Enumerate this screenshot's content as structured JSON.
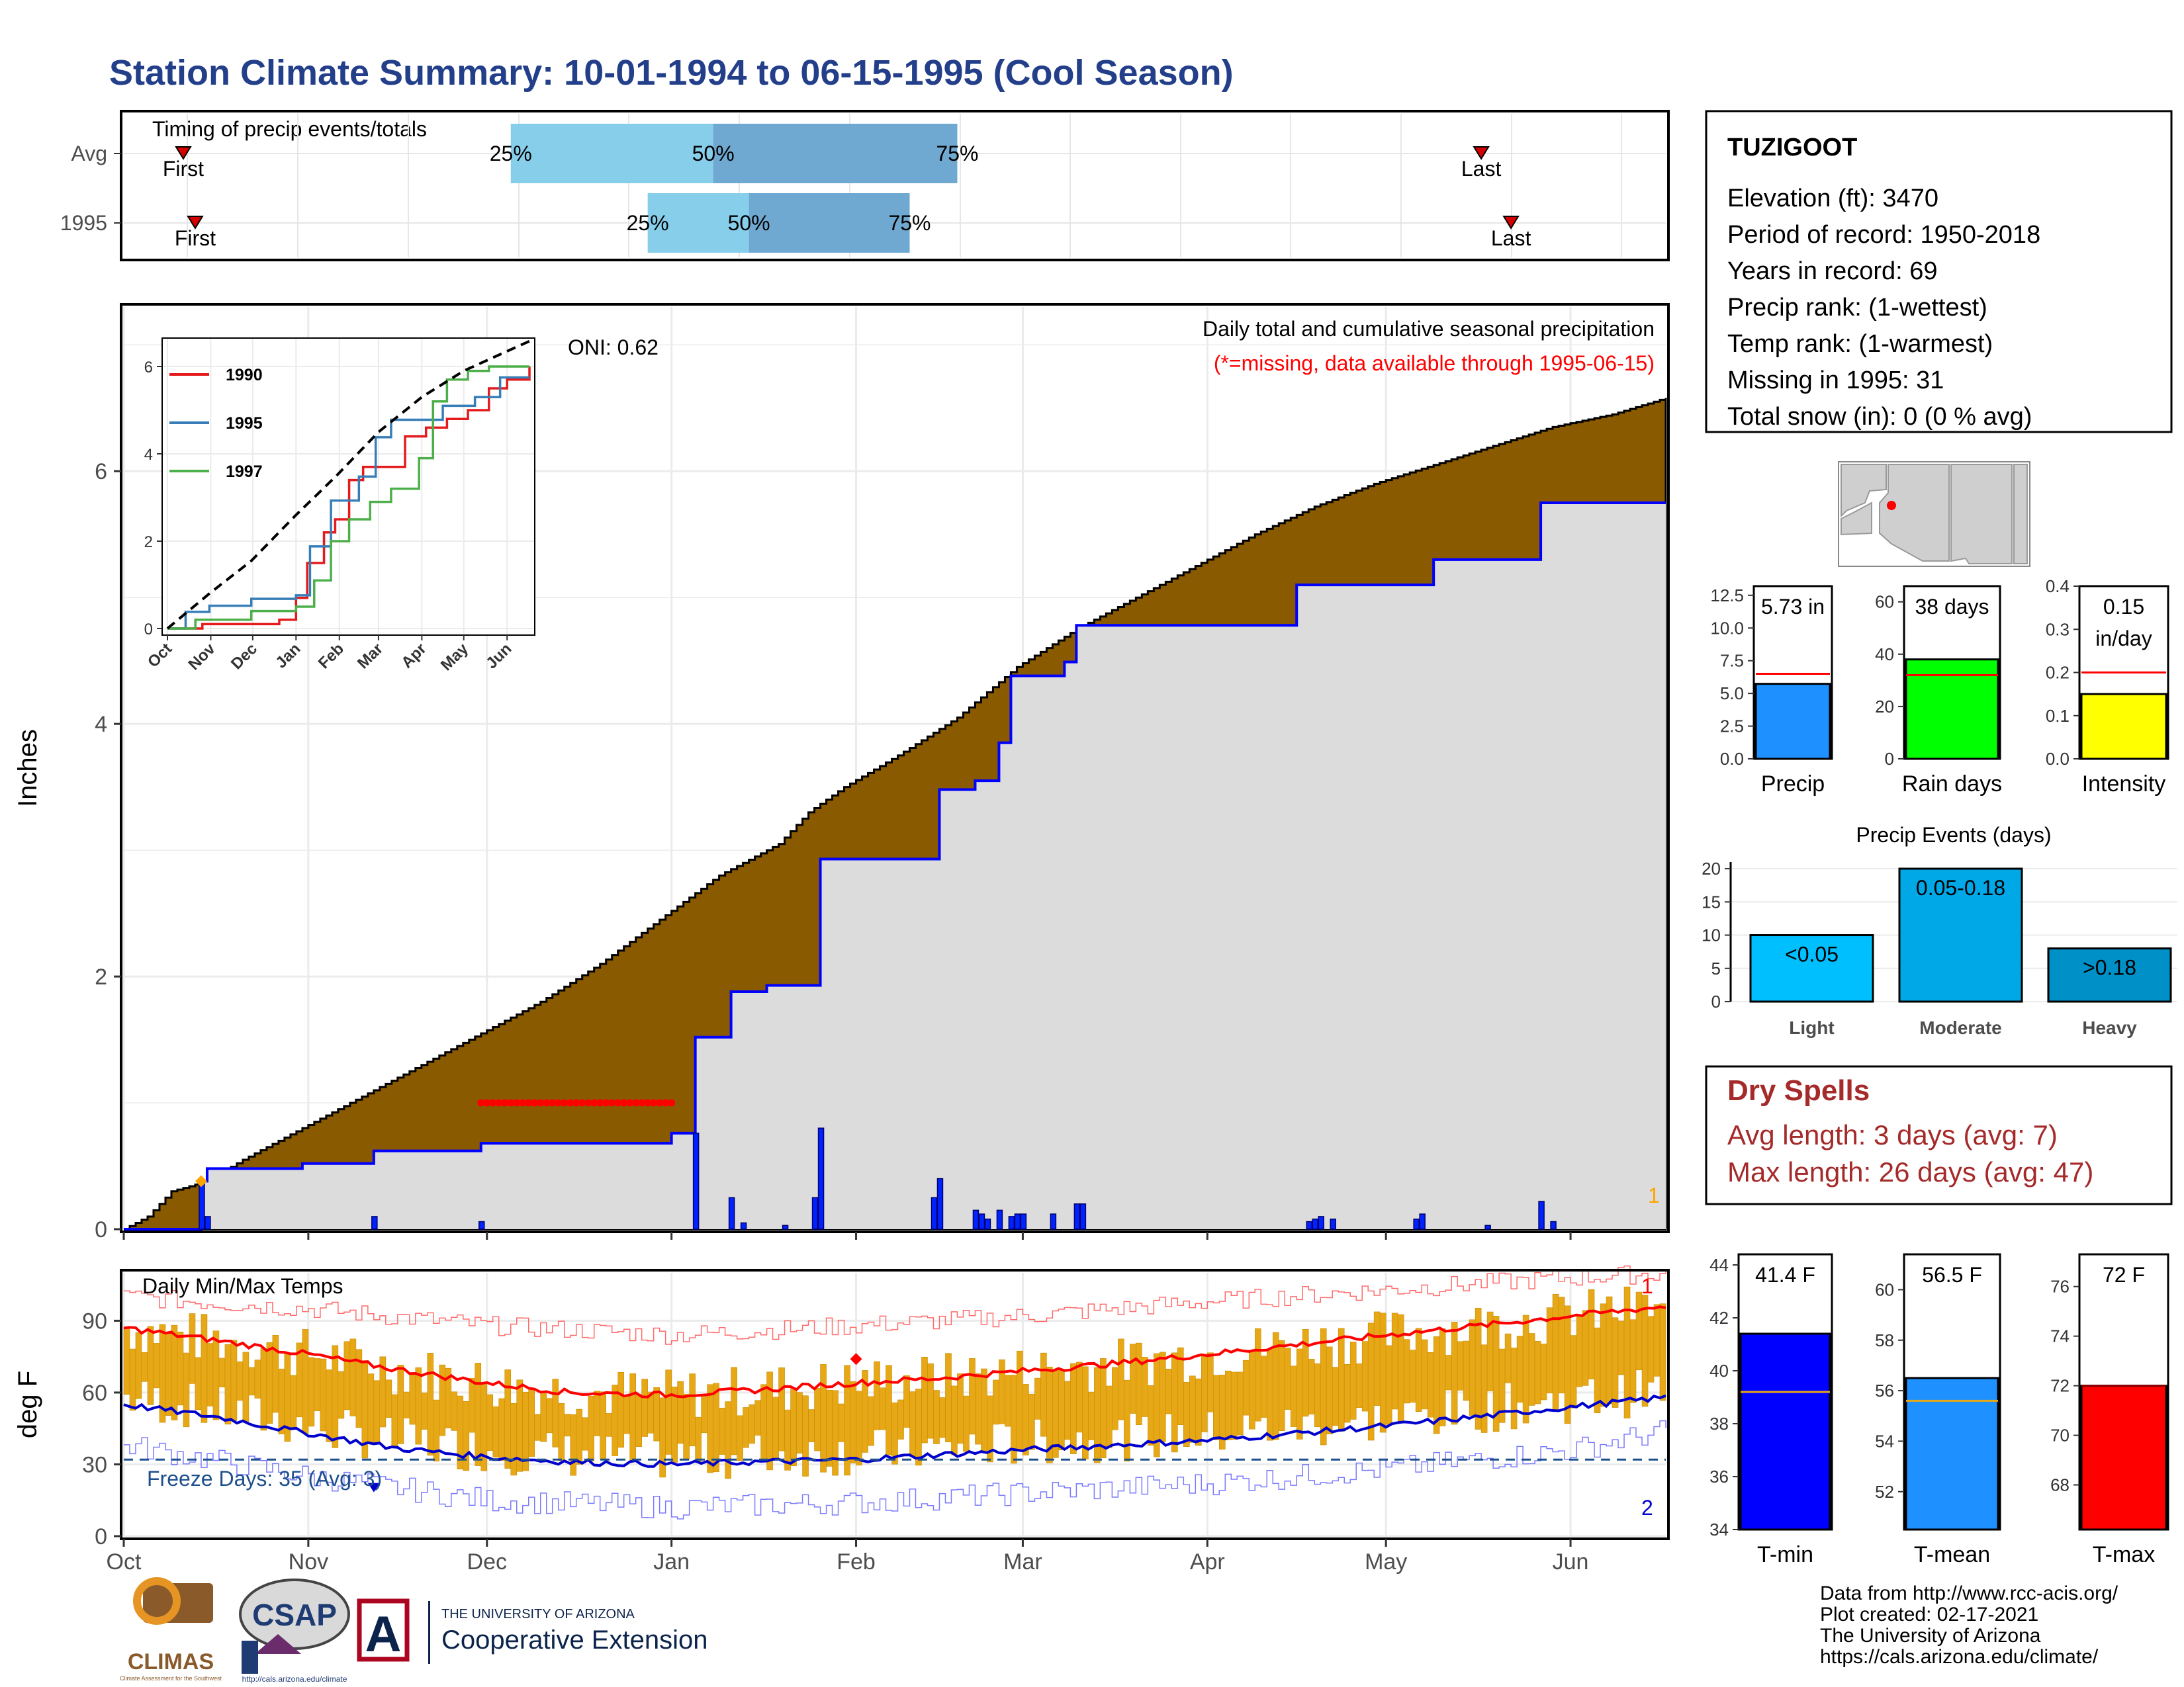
{
  "title": "Station Climate Summary: 10-01-1994 to 06-15-1995 (Cool Season)",
  "colors": {
    "title": "#233f8a",
    "cumulative_fill": "#8a5a00",
    "avg_area": "#dcdcdc",
    "blue_line": "#0000ff",
    "q_light": "#87ceeb",
    "q_dark": "#6fa8d0",
    "temp_bar": "#e6a817",
    "avg_max": "#ff0000",
    "avg_min": "#0000cc",
    "dry_spell": "#a52a2a",
    "freeze": "#1c4f8c"
  },
  "timing_panel": {
    "label": "Timing of precip events/totals",
    "rows": [
      {
        "name": "Avg",
        "first_label": "First",
        "first_day": 10,
        "last_label": "Last",
        "last_day": 228,
        "q25_label": "25%",
        "q25": 65,
        "q50_label": "50%",
        "q50": 99,
        "q75_label": "75%",
        "q75": 140
      },
      {
        "name": "1995",
        "first_label": "First",
        "first_day": 12,
        "last_label": "Last",
        "last_day": 233,
        "q25_label": "25%",
        "q25": 88,
        "q50_label": "50%",
        "q50": 105,
        "q75_label": "75%",
        "q75": 132
      }
    ]
  },
  "info_box": {
    "station": "TUZIGOOT",
    "lines": [
      "Elevation (ft): 3470",
      "Period of record: 1950-2018",
      "Years in record: 69",
      "Precip rank:  (1-wettest)",
      "Temp rank:  (1-warmest)",
      "Missing in 1995: 31",
      "Total snow (in): 0 (0 % avg)"
    ]
  },
  "dry_spells": {
    "title": "Dry Spells",
    "avg_line": "Avg length: 3 days (avg: 7)",
    "max_line": "Max length: 26 days (avg: 47)"
  },
  "footer": {
    "lines": [
      "Data from http://www.rcc-acis.org/",
      "Plot created: 02-17-2021",
      "The University of Arizona",
      "https://cals.arizona.edu/climate/"
    ],
    "logo_climas": "CLIMAS",
    "logo_climas_sub": "Climate Assessment for the Southwest",
    "logo_csap": "CSAP",
    "logo_csap_url": "http://cals.arizona.edu/climate",
    "logo_ua_mark": "A",
    "ua_small": "THE UNIVERSITY OF ARIZONA",
    "ua_big": "Cooperative Extension"
  },
  "chart_data": [
    {
      "id": "cumulative_precip",
      "type": "area",
      "ylabel": "Inches",
      "title": "Daily total and cumulative seasonal precipitation",
      "subtitle": "(*=missing, data available through 1995-06-15)",
      "oni_label": "ONI: 0.62",
      "corner_marker": "1",
      "x_ticks": [
        "Oct",
        "Nov",
        "Dec",
        "Jan",
        "Feb",
        "Mar",
        "Apr",
        "May",
        "Jun"
      ],
      "x_tick_days": [
        0,
        31,
        61,
        92,
        123,
        151,
        182,
        212,
        243
      ],
      "y_ticks": [
        0,
        2,
        4,
        6
      ],
      "ylim": [
        0,
        7.3
      ],
      "avg_cumulative": [
        [
          0,
          0
        ],
        [
          4,
          0.1
        ],
        [
          8,
          0.3
        ],
        [
          14,
          0.38
        ],
        [
          20,
          0.55
        ],
        [
          30,
          0.8
        ],
        [
          40,
          1.05
        ],
        [
          50,
          1.3
        ],
        [
          60,
          1.55
        ],
        [
          70,
          1.8
        ],
        [
          80,
          2.1
        ],
        [
          90,
          2.45
        ],
        [
          100,
          2.8
        ],
        [
          110,
          3.05
        ],
        [
          115,
          3.3
        ],
        [
          121,
          3.5
        ],
        [
          130,
          3.75
        ],
        [
          140,
          4.05
        ],
        [
          150,
          4.45
        ],
        [
          160,
          4.75
        ],
        [
          170,
          5.0
        ],
        [
          180,
          5.25
        ],
        [
          190,
          5.5
        ],
        [
          200,
          5.72
        ],
        [
          210,
          5.9
        ],
        [
          220,
          6.05
        ],
        [
          230,
          6.2
        ],
        [
          240,
          6.35
        ],
        [
          250,
          6.45
        ],
        [
          257,
          6.55
        ],
        [
          259,
          6.58
        ],
        [
          259,
          6.58
        ]
      ],
      "obs_cumulative": [
        [
          0,
          0
        ],
        [
          13,
          0.0
        ],
        [
          13,
          0.38
        ],
        [
          14,
          0.48
        ],
        [
          30,
          0.52
        ],
        [
          42,
          0.52
        ],
        [
          42,
          0.62
        ],
        [
          60,
          0.68
        ],
        [
          92,
          0.68
        ],
        [
          92,
          0.76
        ],
        [
          96,
          1.52
        ],
        [
          102,
          1.88
        ],
        [
          108,
          1.93
        ],
        [
          117,
          1.93
        ],
        [
          117,
          2.93
        ],
        [
          137,
          2.93
        ],
        [
          137,
          3.48
        ],
        [
          143,
          3.55
        ],
        [
          147,
          3.85
        ],
        [
          149,
          4.38
        ],
        [
          158,
          4.49
        ],
        [
          160,
          4.78
        ],
        [
          191,
          4.78
        ],
        [
          197,
          5.1
        ],
        [
          220,
          5.3
        ],
        [
          238,
          5.75
        ],
        [
          259,
          5.75
        ]
      ],
      "missing_range": [
        60,
        92
      ],
      "missing_y": 1.0,
      "daily": [
        [
          13,
          0.38
        ],
        [
          14,
          0.1
        ],
        [
          42,
          0.1
        ],
        [
          60,
          0.06
        ],
        [
          96,
          0.76
        ],
        [
          102,
          0.25
        ],
        [
          104,
          0.05
        ],
        [
          111,
          0.03
        ],
        [
          116,
          0.25
        ],
        [
          117,
          0.8
        ],
        [
          136,
          0.25
        ],
        [
          137,
          0.4
        ],
        [
          143,
          0.15
        ],
        [
          144,
          0.12
        ],
        [
          145,
          0.08
        ],
        [
          147,
          0.15
        ],
        [
          149,
          0.1
        ],
        [
          150,
          0.12
        ],
        [
          151,
          0.12
        ],
        [
          156,
          0.12
        ],
        [
          160,
          0.2
        ],
        [
          161,
          0.2
        ],
        [
          199,
          0.06
        ],
        [
          200,
          0.08
        ],
        [
          201,
          0.1
        ],
        [
          203,
          0.08
        ],
        [
          217,
          0.08
        ],
        [
          218,
          0.12
        ],
        [
          229,
          0.03
        ],
        [
          238,
          0.22
        ],
        [
          240,
          0.06
        ]
      ]
    },
    {
      "id": "inset_cumulative",
      "type": "line",
      "x_ticks": [
        "Oct",
        "Nov",
        "Dec",
        "Jan",
        "Feb",
        "Mar",
        "Apr",
        "May",
        "Jun"
      ],
      "y_ticks": [
        0,
        2,
        4,
        6
      ],
      "ylim": [
        0,
        6.5
      ],
      "series": [
        {
          "name": "1990",
          "color": "#e41a1c",
          "points": [
            [
              0,
              0
            ],
            [
              25,
              0.1
            ],
            [
              80,
              0.2
            ],
            [
              92,
              0.7
            ],
            [
              100,
              1.5
            ],
            [
              112,
              2.2
            ],
            [
              120,
              2.5
            ],
            [
              130,
              3.4
            ],
            [
              140,
              3.7
            ],
            [
              150,
              3.7
            ],
            [
              170,
              4.4
            ],
            [
              185,
              4.6
            ],
            [
              200,
              4.8
            ],
            [
              215,
              5.0
            ],
            [
              230,
              5.5
            ],
            [
              243,
              5.7
            ],
            [
              259,
              6.0
            ]
          ]
        },
        {
          "name": "1995",
          "color": "#377eb8",
          "points": [
            [
              0,
              0
            ],
            [
              13,
              0.38
            ],
            [
              30,
              0.52
            ],
            [
              60,
              0.68
            ],
            [
              92,
              0.76
            ],
            [
              102,
              1.88
            ],
            [
              117,
              2.93
            ],
            [
              137,
              3.48
            ],
            [
              149,
              4.38
            ],
            [
              160,
              4.78
            ],
            [
              197,
              5.1
            ],
            [
              220,
              5.3
            ],
            [
              238,
              5.75
            ],
            [
              259,
              5.75
            ]
          ]
        },
        {
          "name": "1997",
          "color": "#4daf4a",
          "points": [
            [
              0,
              0
            ],
            [
              20,
              0.2
            ],
            [
              60,
              0.4
            ],
            [
              92,
              0.5
            ],
            [
              105,
              1.1
            ],
            [
              117,
              2.0
            ],
            [
              130,
              2.5
            ],
            [
              145,
              2.9
            ],
            [
              160,
              3.2
            ],
            [
              180,
              3.9
            ],
            [
              190,
              5.2
            ],
            [
              200,
              5.7
            ],
            [
              215,
              5.9
            ],
            [
              230,
              6.0
            ],
            [
              259,
              6.0
            ]
          ]
        },
        {
          "name": "",
          "color": "#000000",
          "dashed": true,
          "points": [
            [
              0,
              0
            ],
            [
              30,
              0.8
            ],
            [
              60,
              1.55
            ],
            [
              92,
              2.6
            ],
            [
              121,
              3.5
            ],
            [
              151,
              4.5
            ],
            [
              182,
              5.3
            ],
            [
              212,
              5.9
            ],
            [
              243,
              6.35
            ],
            [
              259,
              6.58
            ]
          ]
        }
      ]
    },
    {
      "id": "precip_totals",
      "type": "bar",
      "categories": [
        "Precip"
      ],
      "value": 5.73,
      "avg": 6.5,
      "value_label": "5.73 in",
      "ylim": [
        0,
        13.2
      ],
      "y_ticks": [
        0.0,
        2.5,
        5.0,
        7.5,
        10.0,
        12.5
      ],
      "y_tick_labels": [
        "0.0",
        "2.5",
        "5.0",
        "7.5",
        "10.0",
        "12.5"
      ],
      "color": "#1e90ff"
    },
    {
      "id": "rain_days",
      "type": "bar",
      "categories": [
        "Rain days"
      ],
      "value": 38,
      "avg": 32,
      "value_label": "38 days",
      "ylim": [
        0,
        66
      ],
      "y_ticks": [
        0,
        20,
        40,
        60
      ],
      "y_tick_labels": [
        "0",
        "20",
        "40",
        "60"
      ],
      "color": "#00ff00"
    },
    {
      "id": "intensity",
      "type": "bar",
      "categories": [
        "Intensity"
      ],
      "value": 0.15,
      "avg": 0.2,
      "value_label": "0.15",
      "value_label2": "in/day",
      "ylim": [
        0,
        0.4
      ],
      "y_ticks": [
        0.0,
        0.1,
        0.2,
        0.3,
        0.4
      ],
      "y_tick_labels": [
        "0.0",
        "0.1",
        "0.2",
        "0.3",
        "0.4"
      ],
      "color": "#ffff00"
    },
    {
      "id": "precip_events",
      "type": "bar",
      "title": "Precip Events (days)",
      "categories": [
        "Light",
        "Moderate",
        "Heavy"
      ],
      "values": [
        10,
        20,
        8
      ],
      "labels": [
        "<0.05",
        "0.05-0.18",
        ">0.18"
      ],
      "colors": [
        "#00bfff",
        "#00a8e8",
        "#0090c8"
      ],
      "ylim": [
        0,
        21
      ],
      "y_ticks": [
        0,
        5,
        10,
        15,
        20
      ]
    },
    {
      "id": "daily_temps",
      "type": "bar",
      "title": "Daily Min/Max Temps",
      "ylabel": "deg F",
      "freeze_label": "Freeze Days: 35 (Avg: 3)",
      "freeze_line": 32,
      "corner_max": "1",
      "corner_min": "2",
      "x_ticks": [
        "Oct",
        "Nov",
        "Dec",
        "Jan",
        "Feb",
        "Mar",
        "Apr",
        "May",
        "Jun"
      ],
      "y_ticks": [
        0,
        30,
        60,
        90
      ],
      "ylim": [
        0,
        110
      ],
      "avg_max": [
        [
          0,
          87
        ],
        [
          15,
          82
        ],
        [
          31,
          76
        ],
        [
          45,
          70
        ],
        [
          61,
          64
        ],
        [
          75,
          60
        ],
        [
          92,
          59
        ],
        [
          106,
          61
        ],
        [
          123,
          64
        ],
        [
          137,
          66
        ],
        [
          151,
          69
        ],
        [
          166,
          72
        ],
        [
          182,
          76
        ],
        [
          197,
          80
        ],
        [
          212,
          84
        ],
        [
          228,
          88
        ],
        [
          243,
          92
        ],
        [
          259,
          96
        ]
      ],
      "avg_min": [
        [
          0,
          55
        ],
        [
          15,
          50
        ],
        [
          31,
          43
        ],
        [
          45,
          37
        ],
        [
          61,
          33
        ],
        [
          75,
          31
        ],
        [
          92,
          30
        ],
        [
          106,
          31
        ],
        [
          123,
          32
        ],
        [
          137,
          34
        ],
        [
          151,
          36
        ],
        [
          166,
          38
        ],
        [
          182,
          40
        ],
        [
          197,
          43
        ],
        [
          212,
          46
        ],
        [
          228,
          50
        ],
        [
          243,
          54
        ],
        [
          259,
          58
        ]
      ],
      "rec_max": [
        [
          0,
          100
        ],
        [
          31,
          95
        ],
        [
          61,
          88
        ],
        [
          92,
          84
        ],
        [
          123,
          88
        ],
        [
          151,
          92
        ],
        [
          182,
          98
        ],
        [
          212,
          103
        ],
        [
          243,
          108
        ],
        [
          259,
          110
        ]
      ],
      "rec_min": [
        [
          0,
          38
        ],
        [
          31,
          25
        ],
        [
          61,
          15
        ],
        [
          92,
          12
        ],
        [
          123,
          14
        ],
        [
          151,
          18
        ],
        [
          182,
          22
        ],
        [
          212,
          28
        ],
        [
          243,
          36
        ],
        [
          259,
          44
        ]
      ]
    },
    {
      "id": "tmin",
      "type": "bar",
      "categories": [
        "T-min"
      ],
      "value": 41.4,
      "avg": 39.2,
      "value_label": "41.4 F",
      "ylim": [
        34,
        44.4
      ],
      "y_ticks": [
        34,
        36,
        38,
        40,
        42,
        44
      ],
      "y_tick_labels": [
        "34",
        "36",
        "38",
        "40",
        "42",
        "44"
      ],
      "color": "#0000ff"
    },
    {
      "id": "tmean",
      "type": "bar",
      "categories": [
        "T-mean"
      ],
      "value": 56.5,
      "avg": 55.6,
      "value_label": "56.5 F",
      "ylim": [
        50.5,
        61.4
      ],
      "y_ticks": [
        52,
        54,
        56,
        58,
        60
      ],
      "y_tick_labels": [
        "52",
        "54",
        "56",
        "58",
        "60"
      ],
      "color": "#1e90ff"
    },
    {
      "id": "tmax",
      "type": "bar",
      "categories": [
        "T-max"
      ],
      "value": 72,
      "avg": 72,
      "value_label": "72 F",
      "ylim": [
        66.2,
        77.3
      ],
      "y_ticks": [
        68,
        70,
        72,
        74,
        76
      ],
      "y_tick_labels": [
        "68",
        "70",
        "72",
        "74",
        "76"
      ],
      "color": "#ff0000"
    }
  ]
}
